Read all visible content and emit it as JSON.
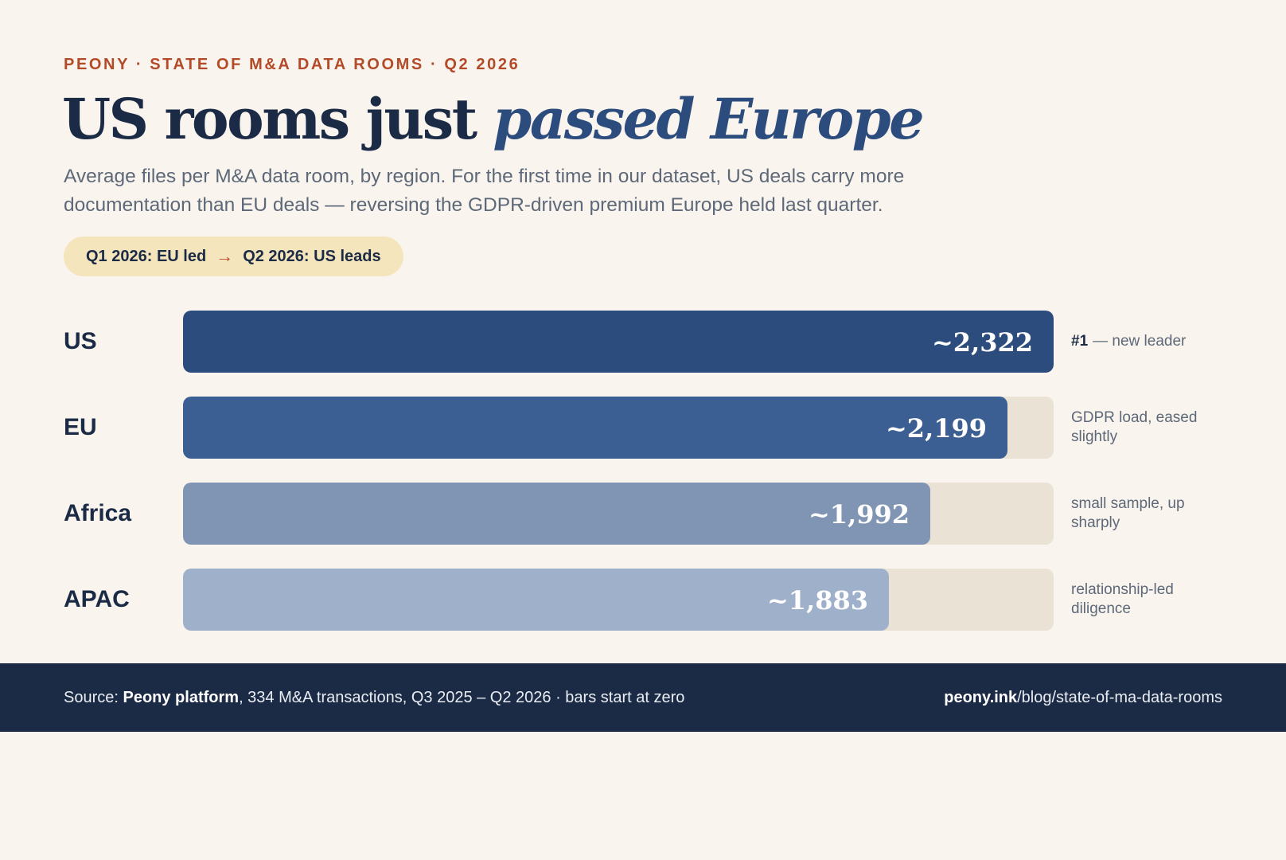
{
  "eyebrow": "PEONY · STATE OF M&A DATA ROOMS · Q2 2026",
  "title": {
    "main": "US rooms just ",
    "accent": "passed Europe"
  },
  "subtitle": "Average files per M&A data room, by region. For the first time in our dataset, US deals carry more documentation than EU deals — reversing the GDPR-driven premium Europe held last quarter.",
  "pill": {
    "before": "Q1 2026: EU led",
    "arrow": "→",
    "after": "Q2 2026: US leads"
  },
  "chart_data": {
    "type": "bar",
    "orientation": "horizontal",
    "categories": [
      "US",
      "EU",
      "Africa",
      "APAC"
    ],
    "values": [
      2322,
      2199,
      1992,
      1883
    ],
    "value_labels": [
      "~2,322",
      "~2,199",
      "~1,992",
      "~1,883"
    ],
    "xlim": [
      0,
      2322
    ],
    "colors": [
      "#2c4c7e",
      "#3c5f93",
      "#8094b3",
      "#9fb0cb"
    ],
    "annotations": [
      {
        "strong": "#1",
        "text": "— new leader"
      },
      {
        "strong": "",
        "text": "GDPR load, eased slightly"
      },
      {
        "strong": "",
        "text": "small sample, up sharply"
      },
      {
        "strong": "",
        "text": "relationship-led diligence"
      }
    ]
  },
  "footer": {
    "source_prefix": "Source: ",
    "source_bold": "Peony platform",
    "source_rest": ", 334 M&A transactions, Q3 2025 – Q2 2026 · bars start at zero",
    "link_bold": "peony.ink",
    "link_rest": "/blog/state-of-ma-data-rooms"
  }
}
